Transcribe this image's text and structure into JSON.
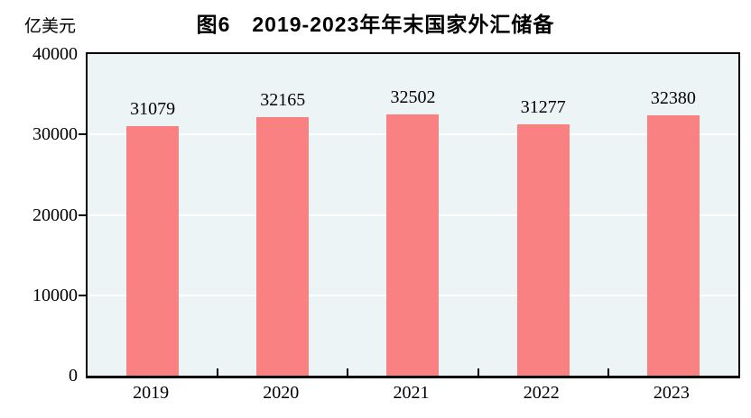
{
  "figure": {
    "background": "#ffffff"
  },
  "chart_data": {
    "type": "bar",
    "title": "图6　2019-2023年年末国家外汇储备",
    "unit": "亿美元",
    "ylabel": "亿美元",
    "xlabel": "",
    "categories": [
      "2019",
      "2020",
      "2021",
      "2022",
      "2023"
    ],
    "values": [
      31079,
      32165,
      32502,
      31277,
      32380
    ],
    "data_labels_shown": true,
    "ylim": [
      0,
      40000
    ],
    "yticks": [
      0,
      10000,
      20000,
      30000,
      40000
    ],
    "grid": true,
    "legend_position": "none",
    "colors": {
      "bar": "#FA8181",
      "plot_background": "#EDF4F6",
      "gridline": "#FFFFFF",
      "axis_border": "#000000",
      "text": "#000000"
    }
  }
}
